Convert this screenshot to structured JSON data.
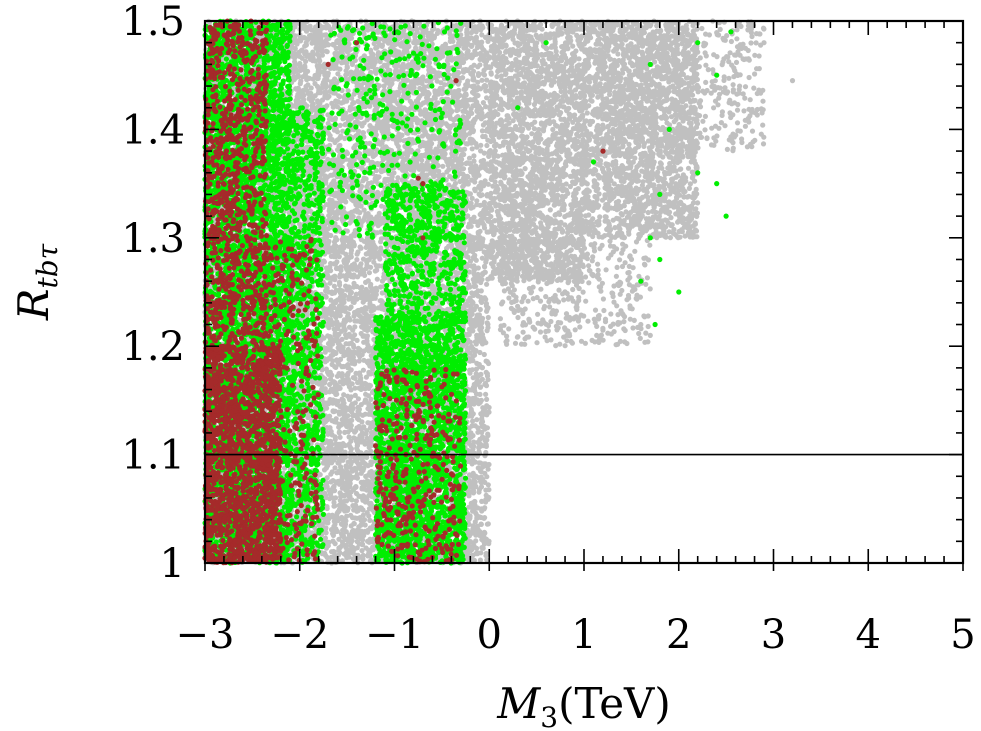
{
  "chart_data": {
    "type": "scatter",
    "xlabel": {
      "main": "M",
      "sub": "3",
      "rest": "(TeV)"
    },
    "ylabel": {
      "main": "R",
      "sub": "tbτ"
    },
    "xlim": [
      -3,
      5
    ],
    "ylim": [
      1.0,
      1.5
    ],
    "x_ticks": [
      -3,
      -2,
      -1,
      0,
      1,
      2,
      3,
      4,
      5
    ],
    "x_tick_labels": [
      "−3",
      "−2",
      "−1",
      "0",
      "1",
      "2",
      "3",
      "4",
      "5"
    ],
    "y_ticks": [
      1.0,
      1.1,
      1.2,
      1.3,
      1.4,
      1.5
    ],
    "y_tick_labels": [
      "1",
      "1.1",
      "1.2",
      "1.3",
      "1.4",
      "1.5"
    ],
    "x_minor_step": 0.2,
    "y_minor_step": 0.02,
    "reference_line": {
      "y": 1.1
    },
    "grid": false,
    "legend": "none",
    "series": [
      {
        "color": "#c0c0c0",
        "regions": [
          {
            "x": [
              -3.0,
              -1.9
            ],
            "y": [
              1.0,
              1.5
            ],
            "density": 0.9
          },
          {
            "x": [
              -1.9,
              -1.1
            ],
            "y": [
              1.0,
              1.5
            ],
            "density": 0.75
          },
          {
            "x": [
              -1.1,
              -0.15
            ],
            "y": [
              1.0,
              1.5
            ],
            "density": 0.85
          },
          {
            "x": [
              -0.15,
              0.0
            ],
            "y": [
              1.0,
              1.5
            ],
            "density": 0.6
          },
          {
            "x": [
              0.0,
              1.0
            ],
            "y": [
              1.26,
              1.5
            ],
            "density": 0.9
          },
          {
            "x": [
              1.0,
              2.2
            ],
            "y": [
              1.3,
              1.5
            ],
            "density": 0.8
          },
          {
            "x": [
              1.2,
              2.9
            ],
            "y": [
              1.38,
              1.5
            ],
            "density": 0.25
          },
          {
            "x": [
              0.1,
              1.7
            ],
            "y": [
              1.2,
              1.3
            ],
            "density": 0.25
          }
        ],
        "points": [
          [
            3.2,
            1.445
          ],
          [
            2.9,
            1.48
          ],
          [
            1.6,
            1.22
          ],
          [
            1.7,
            1.21
          ]
        ]
      },
      {
        "color": "#00ee00",
        "regions": [
          {
            "x": [
              -3.0,
              -2.1
            ],
            "y": [
              1.0,
              1.5
            ],
            "density": 1.0
          },
          {
            "x": [
              -2.1,
              -1.75
            ],
            "y": [
              1.0,
              1.42
            ],
            "density": 0.55
          },
          {
            "x": [
              -1.2,
              -0.25
            ],
            "y": [
              1.0,
              1.23
            ],
            "density": 1.0
          },
          {
            "x": [
              -1.1,
              -0.25
            ],
            "y": [
              1.23,
              1.35
            ],
            "density": 0.5
          },
          {
            "x": [
              -1.7,
              -0.3
            ],
            "y": [
              1.3,
              1.5
            ],
            "density": 0.12
          }
        ],
        "points": [
          [
            0.6,
            1.48
          ],
          [
            0.3,
            1.42
          ],
          [
            1.1,
            1.37
          ],
          [
            1.7,
            1.46
          ],
          [
            1.8,
            1.34
          ],
          [
            1.7,
            1.3
          ],
          [
            1.8,
            1.28
          ],
          [
            2.0,
            1.25
          ],
          [
            1.75,
            1.22
          ],
          [
            2.2,
            1.36
          ],
          [
            2.4,
            1.35
          ],
          [
            2.5,
            1.32
          ],
          [
            2.4,
            1.45
          ],
          [
            2.2,
            1.48
          ],
          [
            1.9,
            1.4
          ],
          [
            2.55,
            1.49
          ],
          [
            1.6,
            1.26
          ]
        ]
      },
      {
        "color": "#a52a2a",
        "regions": [
          {
            "x": [
              -3.0,
              -2.2
            ],
            "y": [
              1.0,
              1.2
            ],
            "density": 1.0
          },
          {
            "x": [
              -3.0,
              -2.35
            ],
            "y": [
              1.2,
              1.5
            ],
            "density": 0.45
          },
          {
            "x": [
              -2.35,
              -1.8
            ],
            "y": [
              1.0,
              1.3
            ],
            "density": 0.15
          },
          {
            "x": [
              -1.2,
              -0.3
            ],
            "y": [
              1.0,
              1.18
            ],
            "density": 0.2
          }
        ],
        "points": [
          [
            -0.75,
            1.355
          ],
          [
            -0.7,
            1.35
          ],
          [
            -0.35,
            1.445
          ],
          [
            -1.7,
            1.46
          ],
          [
            1.2,
            1.38
          ],
          [
            -0.7,
            1.3
          ],
          [
            -1.4,
            1.48
          ]
        ]
      }
    ]
  }
}
